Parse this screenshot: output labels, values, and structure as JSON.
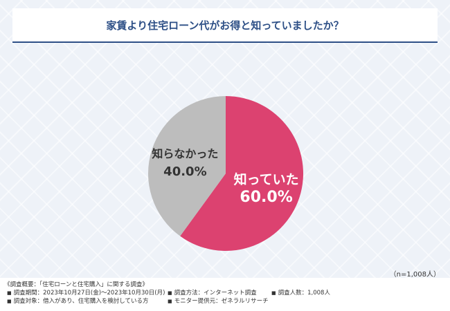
{
  "title": "家賃より住宅ローン代がお得と知っていましたか？",
  "chart_data": {
    "type": "pie",
    "slices": [
      {
        "label": "知っていた",
        "value": 60.0,
        "display": "60.0%",
        "color": "#dc4270",
        "text_color": "#ffffff"
      },
      {
        "label": "知らなかった",
        "value": 40.0,
        "display": "40.0%",
        "color": "#bdbdbd",
        "text_color": "#333333"
      }
    ]
  },
  "sample_note": "（n=1,008人）",
  "footer": {
    "heading": "《調査概要：「住宅ローンと住宅購入」に関する調査》",
    "period": "調査期間：2023年10月27日(金)～2023年10月30日(月)",
    "method": "調査方法：インターネット調査",
    "count": "調査人数：1,008人",
    "target": "調査対象：借入があり、住宅購入を検討している方",
    "provider": "モニター提供元：ゼネラルリサーチ",
    "bullet": "■"
  }
}
